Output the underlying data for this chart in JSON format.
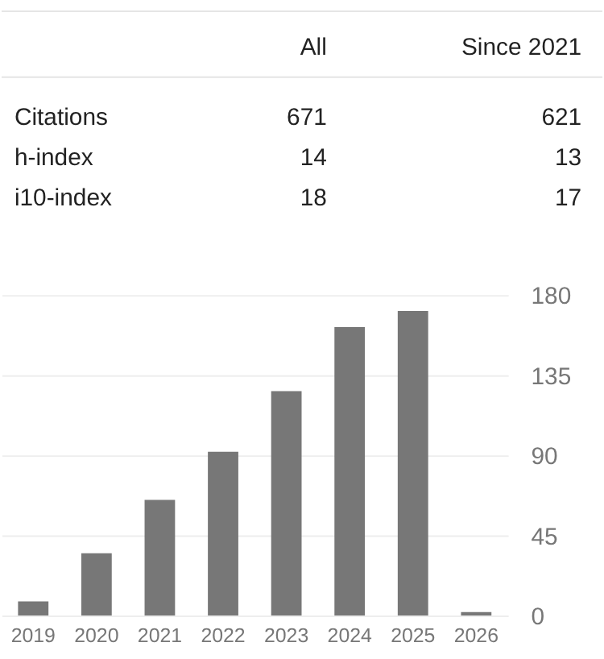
{
  "chart_data": [
    {
      "type": "other",
      "categories": [
        "All",
        "Since 2021"
      ],
      "y_categories": [
        "Citations",
        "h-index",
        "i10-index"
      ],
      "cell_labels": [
        [
          "671",
          "621"
        ],
        [
          "14",
          "13"
        ],
        [
          "18",
          "17"
        ]
      ]
    },
    {
      "type": "bar",
      "categories": [
        "2019",
        "2020",
        "2021",
        "2022",
        "2023",
        "2024",
        "2025",
        "2026"
      ],
      "values": [
        8,
        35,
        65,
        92,
        126,
        162,
        171,
        2
      ],
      "color": "#777777",
      "ylim": [
        0,
        180
      ],
      "yticks": [
        0,
        45,
        90,
        135,
        180
      ],
      "grid": "y"
    }
  ]
}
